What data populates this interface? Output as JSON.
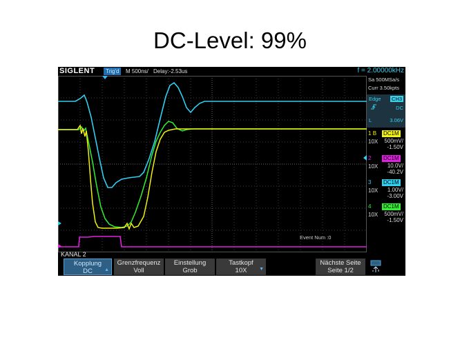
{
  "slide": {
    "title": "DC-Level: 99%"
  },
  "scope": {
    "brand": "SIGLENT",
    "trigger_status": "Trig'd",
    "timebase": "M 500ns/",
    "delay": "Delay:-2.53us",
    "frequency": "f = 2.00000kHz",
    "sample_rate": "Sa 500MSa/s",
    "memory": "Curr 3.50kpts",
    "trigger": {
      "type": "Edge",
      "source": "CH3",
      "slope_icon": "rising-edge-icon",
      "coupling": "DC",
      "level_label": "L",
      "level": "3.06V"
    },
    "channels": [
      {
        "num": "1",
        "mark": "B",
        "coupling": "DC1M",
        "probe": "10X",
        "volts_div": "500mV/",
        "offset": "-1.50V",
        "color": "#f2f20e"
      },
      {
        "num": "2",
        "coupling": "DC1M",
        "probe": "10X",
        "volts_div": "10.0V/",
        "offset": "-40.2V",
        "color": "#e020e0"
      },
      {
        "num": "3",
        "coupling": "DC1M",
        "probe": "10X",
        "volts_div": "1.00V/",
        "offset": "-3.00V",
        "color": "#30d0f0"
      },
      {
        "num": "4",
        "coupling": "DC1M",
        "probe": "10X",
        "volts_div": "500mV/",
        "offset": "-1.50V",
        "color": "#30f030"
      }
    ],
    "event_num": "Event Num :0",
    "menu_title": "KANAL 2",
    "menu": [
      {
        "line1": "Kopplung",
        "line2": "DC",
        "active": true
      },
      {
        "line1": "Grenzfrequenz",
        "line2": "Voll"
      },
      {
        "line1": "Einstellung",
        "line2": "Grob"
      },
      {
        "line1": "Tastkopf",
        "line2": "10X"
      },
      {
        "line1": "Nächste Seite",
        "line2": "Seite 1/2"
      }
    ],
    "usb_icon": "usb-icon"
  }
}
